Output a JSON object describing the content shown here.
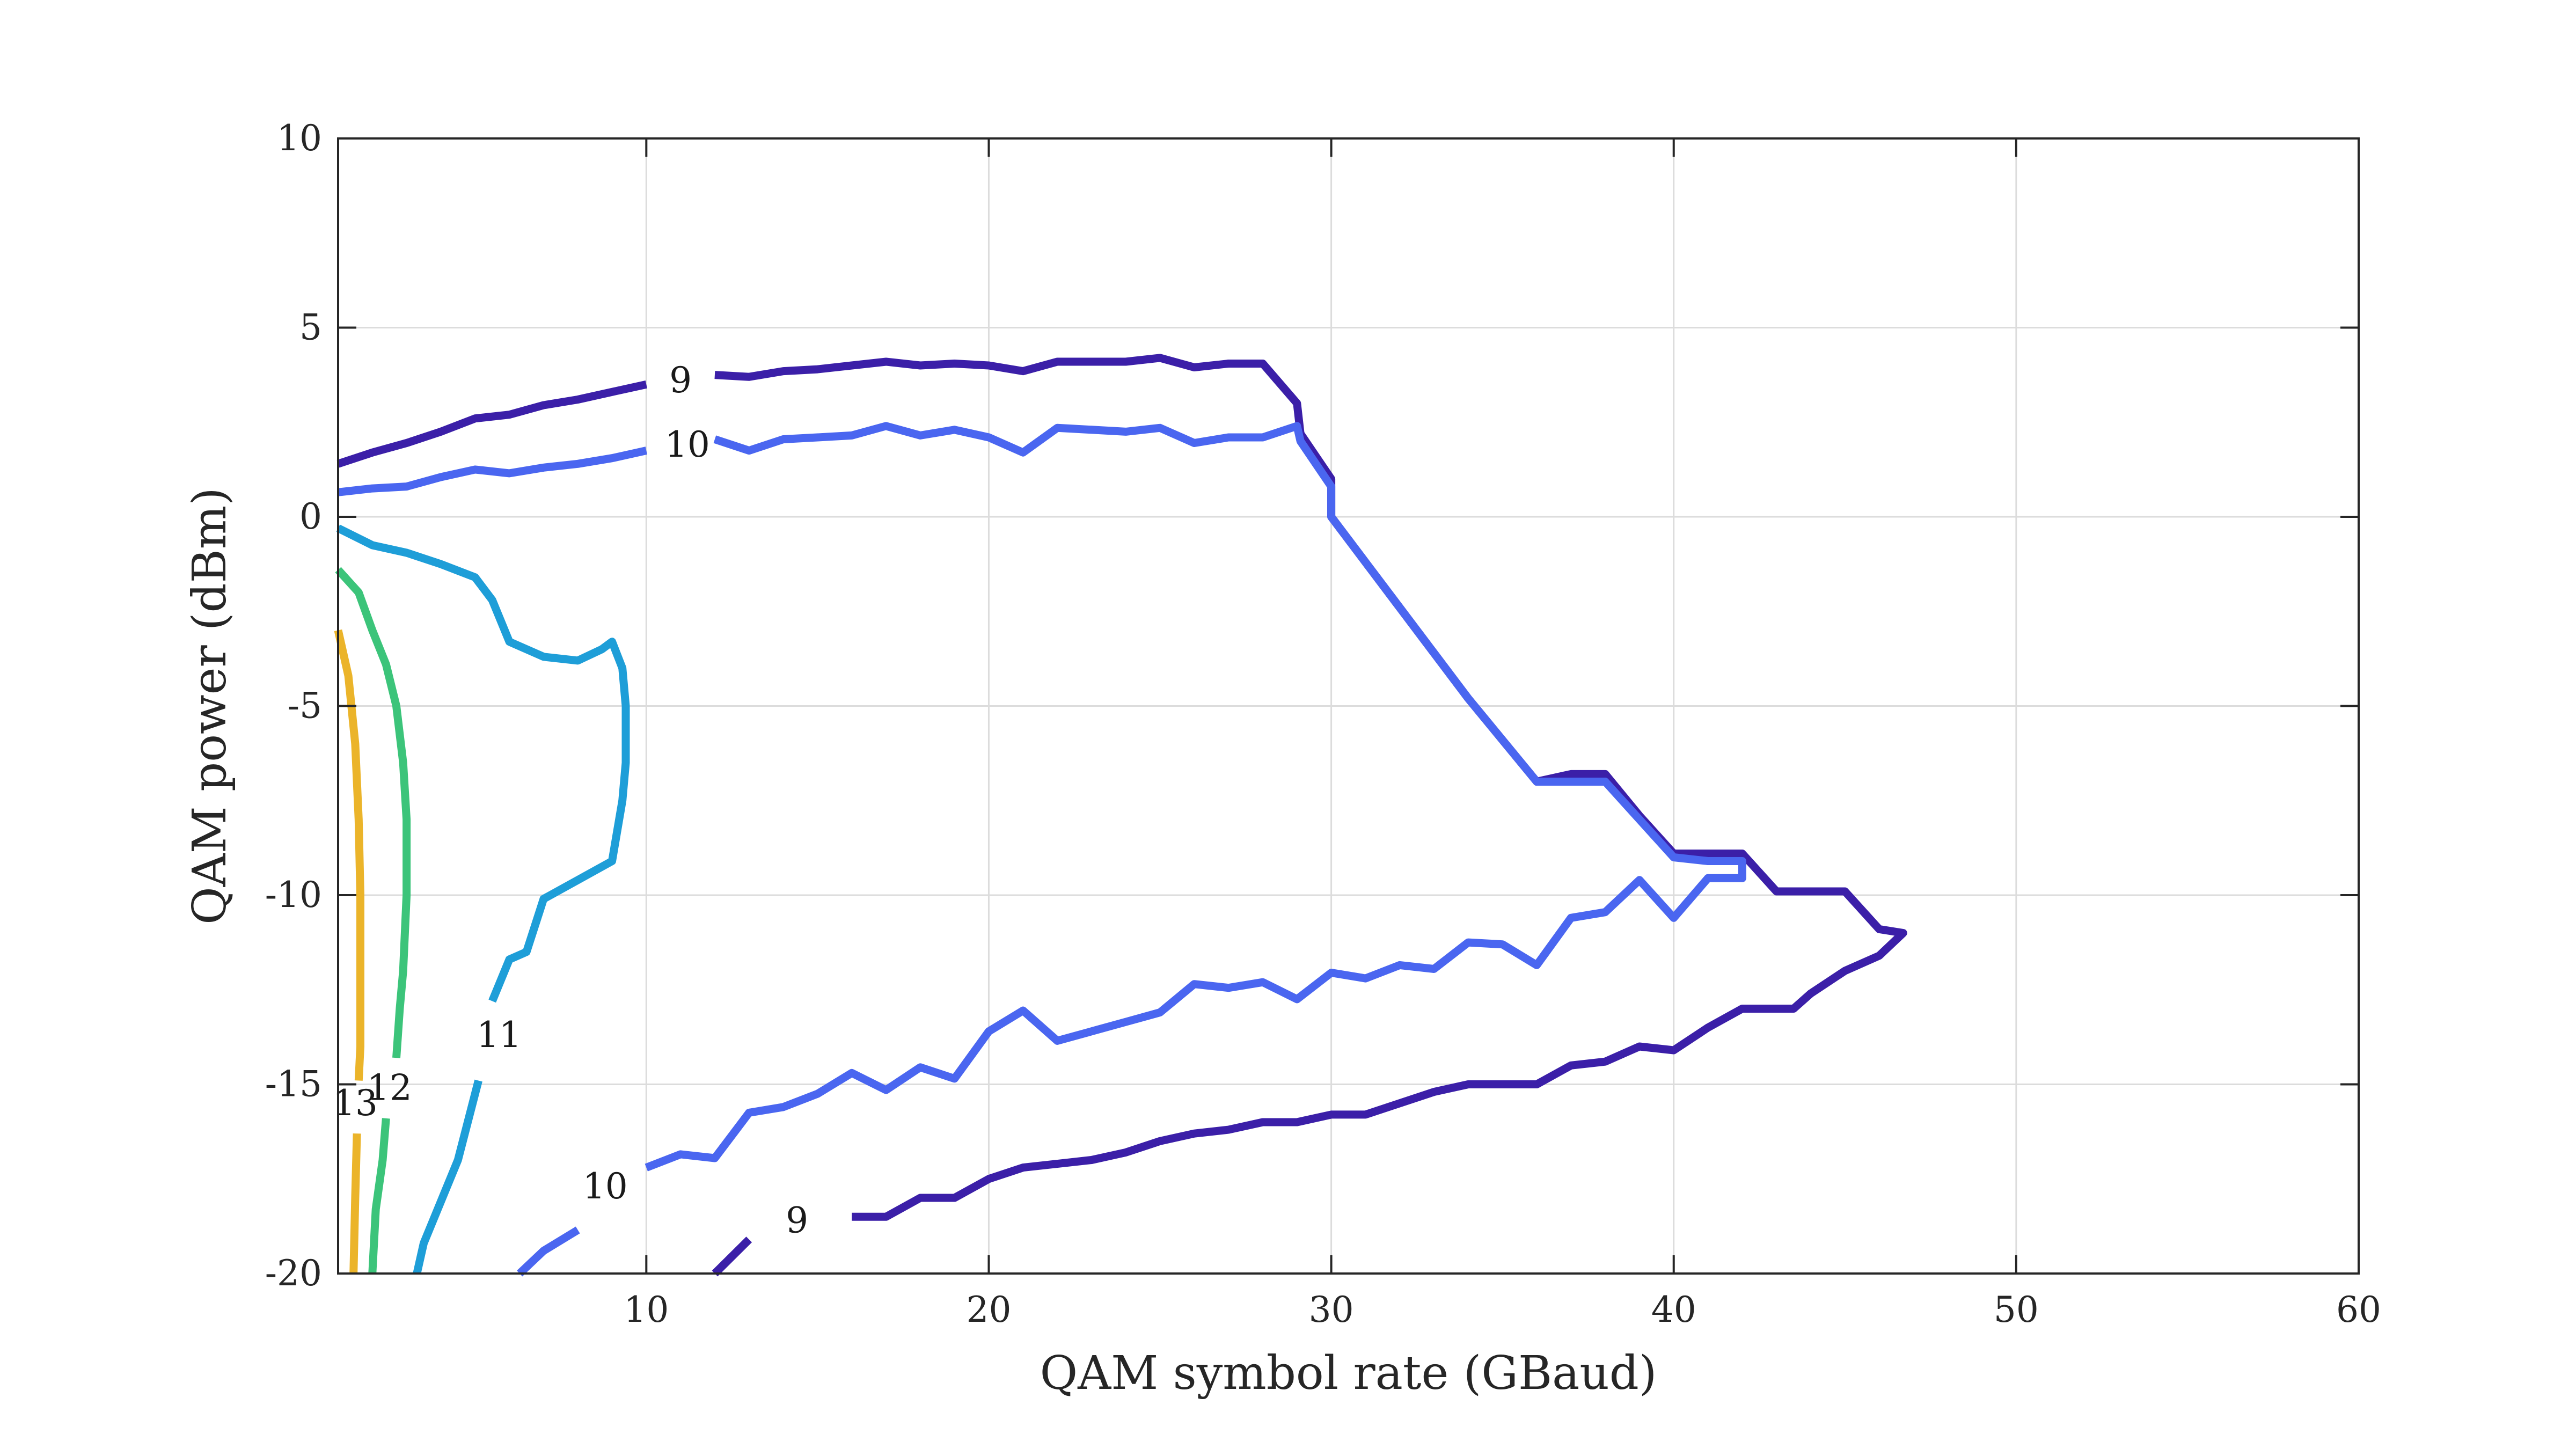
{
  "chart_data": {
    "type": "contour",
    "title": "",
    "xlabel": "QAM symbol rate (GBaud)",
    "ylabel": "QAM power (dBm)",
    "xlim": [
      1,
      60
    ],
    "ylim": [
      -20,
      10
    ],
    "xticks": [
      10,
      20,
      30,
      40,
      50,
      60
    ],
    "yticks": [
      -20,
      -15,
      -10,
      -5,
      0,
      5,
      10
    ],
    "xtick_labels": [
      "10",
      "20",
      "30",
      "40",
      "50",
      "60"
    ],
    "ytick_labels": [
      "-20",
      "-15",
      "-10",
      "-5",
      "0",
      "5",
      "10"
    ],
    "grid": true,
    "legend": "none",
    "series": [
      {
        "level_label": "9",
        "color": "#3b1fa8",
        "label_positions": [
          [
            11,
            3.6
          ],
          [
            14.4,
            -18.6
          ]
        ],
        "paths": [
          [
            [
              1,
              1.4
            ],
            [
              2,
              1.7
            ],
            [
              3,
              1.95
            ],
            [
              4,
              2.25
            ],
            [
              5,
              2.6
            ],
            [
              6,
              2.7
            ],
            [
              7,
              2.95
            ],
            [
              8,
              3.1
            ],
            [
              9,
              3.3
            ],
            [
              10,
              3.5
            ]
          ],
          [
            [
              12,
              3.75
            ],
            [
              13,
              3.7
            ],
            [
              14,
              3.85
            ],
            [
              15,
              3.9
            ],
            [
              16,
              4.0
            ],
            [
              17,
              4.1
            ],
            [
              18,
              4.0
            ],
            [
              19,
              4.05
            ],
            [
              20,
              4.0
            ],
            [
              21,
              3.85
            ],
            [
              22,
              4.1
            ],
            [
              23,
              4.1
            ],
            [
              24,
              4.1
            ],
            [
              25,
              4.2
            ],
            [
              26,
              3.95
            ],
            [
              27,
              4.05
            ],
            [
              28,
              4.05
            ],
            [
              29,
              3.0
            ],
            [
              29.1,
              2.2
            ],
            [
              30,
              1.0
            ],
            [
              30,
              0.0
            ],
            [
              31,
              -1.2
            ],
            [
              32,
              -2.4
            ],
            [
              33,
              -3.6
            ],
            [
              34,
              -4.8
            ],
            [
              35,
              -5.9
            ],
            [
              36,
              -7.0
            ],
            [
              37,
              -6.8
            ],
            [
              38,
              -6.8
            ],
            [
              39,
              -7.9
            ],
            [
              40,
              -8.9
            ],
            [
              41,
              -8.9
            ],
            [
              42,
              -8.9
            ],
            [
              43,
              -9.9
            ],
            [
              44,
              -9.9
            ],
            [
              45,
              -9.9
            ],
            [
              46,
              -10.9
            ],
            [
              46.7,
              -11.0
            ],
            [
              46,
              -11.6
            ],
            [
              45,
              -12.0
            ],
            [
              44,
              -12.6
            ],
            [
              43.5,
              -13.0
            ],
            [
              42,
              -13.0
            ],
            [
              41,
              -13.5
            ],
            [
              40,
              -14.1
            ],
            [
              39,
              -14.0
            ],
            [
              38,
              -14.4
            ],
            [
              37,
              -14.5
            ],
            [
              36,
              -15.0
            ],
            [
              35,
              -15.0
            ],
            [
              34,
              -15.0
            ],
            [
              33,
              -15.2
            ],
            [
              32,
              -15.5
            ],
            [
              31,
              -15.8
            ],
            [
              30,
              -15.8
            ],
            [
              29,
              -16.0
            ],
            [
              28,
              -16.0
            ],
            [
              27,
              -16.2
            ],
            [
              26,
              -16.3
            ],
            [
              25,
              -16.5
            ],
            [
              24,
              -16.8
            ],
            [
              23,
              -17.0
            ],
            [
              22,
              -17.1
            ],
            [
              21,
              -17.2
            ],
            [
              20,
              -17.5
            ],
            [
              19,
              -18.0
            ],
            [
              18,
              -18.0
            ],
            [
              17,
              -18.5
            ],
            [
              16,
              -18.5
            ]
          ],
          [
            [
              13,
              -19.1
            ],
            [
              12,
              -20.0
            ]
          ]
        ]
      },
      {
        "level_label": "10",
        "color": "#4a66f0",
        "label_positions": [
          [
            11.2,
            1.9
          ],
          [
            8.8,
            -17.7
          ]
        ],
        "paths": [
          [
            [
              1,
              0.65
            ],
            [
              2,
              0.75
            ],
            [
              3,
              0.8
            ],
            [
              4,
              1.05
            ],
            [
              5,
              1.25
            ],
            [
              6,
              1.15
            ],
            [
              7,
              1.3
            ],
            [
              8,
              1.4
            ],
            [
              9,
              1.55
            ],
            [
              10,
              1.75
            ]
          ],
          [
            [
              12,
              2.05
            ],
            [
              13,
              1.75
            ],
            [
              14,
              2.05
            ],
            [
              15,
              2.1
            ],
            [
              16,
              2.15
            ],
            [
              17,
              2.4
            ],
            [
              18,
              2.15
            ],
            [
              19,
              2.3
            ],
            [
              20,
              2.1
            ],
            [
              21,
              1.7
            ],
            [
              22,
              2.35
            ],
            [
              23,
              2.3
            ],
            [
              24,
              2.25
            ],
            [
              25,
              2.35
            ],
            [
              26,
              1.95
            ],
            [
              27,
              2.1
            ],
            [
              28,
              2.1
            ],
            [
              29,
              2.4
            ],
            [
              29.1,
              2.0
            ],
            [
              30,
              0.8
            ],
            [
              30,
              0.0
            ],
            [
              31,
              -1.2
            ],
            [
              32,
              -2.4
            ],
            [
              33,
              -3.6
            ],
            [
              34,
              -4.8
            ],
            [
              35,
              -5.9
            ],
            [
              36,
              -7.0
            ],
            [
              37,
              -7.0
            ],
            [
              38,
              -7.0
            ],
            [
              39,
              -8.0
            ],
            [
              40,
              -9.0
            ],
            [
              41,
              -9.1
            ],
            [
              42,
              -9.1
            ],
            [
              42,
              -9.55
            ],
            [
              41,
              -9.55
            ],
            [
              40,
              -10.6
            ],
            [
              39,
              -9.6
            ],
            [
              38,
              -10.45
            ],
            [
              37,
              -10.6
            ],
            [
              36,
              -11.85
            ],
            [
              35,
              -11.3
            ],
            [
              34,
              -11.25
            ],
            [
              33,
              -11.95
            ],
            [
              32,
              -11.85
            ],
            [
              31,
              -12.2
            ],
            [
              30,
              -12.05
            ],
            [
              29,
              -12.75
            ],
            [
              28,
              -12.3
            ],
            [
              27,
              -12.45
            ],
            [
              26,
              -12.35
            ],
            [
              25,
              -13.1
            ],
            [
              24,
              -13.35
            ],
            [
              23,
              -13.6
            ],
            [
              22,
              -13.85
            ],
            [
              21,
              -13.05
            ],
            [
              20,
              -13.6
            ],
            [
              19,
              -14.85
            ],
            [
              18,
              -14.55
            ],
            [
              17,
              -15.15
            ],
            [
              16,
              -14.7
            ],
            [
              15,
              -15.25
            ],
            [
              14,
              -15.6
            ],
            [
              13,
              -15.75
            ],
            [
              12,
              -16.95
            ],
            [
              11,
              -16.85
            ],
            [
              10,
              -17.2
            ]
          ],
          [
            [
              8,
              -18.85
            ],
            [
              7,
              -19.4
            ],
            [
              6.3,
              -20.0
            ]
          ]
        ]
      },
      {
        "level_label": "11",
        "color": "#1e9ed8",
        "label_positions": [
          [
            5.7,
            -13.7
          ]
        ],
        "paths": [
          [
            [
              1,
              -0.3
            ],
            [
              2,
              -0.75
            ],
            [
              3,
              -0.95
            ],
            [
              4,
              -1.25
            ],
            [
              5,
              -1.6
            ],
            [
              5.5,
              -2.2
            ],
            [
              6,
              -3.3
            ],
            [
              7,
              -3.7
            ],
            [
              8,
              -3.8
            ],
            [
              8.7,
              -3.5
            ],
            [
              9,
              -3.3
            ],
            [
              9.3,
              -4.0
            ],
            [
              9.4,
              -5.0
            ],
            [
              9.4,
              -6.5
            ],
            [
              9.3,
              -7.5
            ],
            [
              9,
              -9.1
            ],
            [
              8,
              -9.6
            ],
            [
              7,
              -10.1
            ],
            [
              6.5,
              -11.5
            ],
            [
              6,
              -11.7
            ],
            [
              5.5,
              -12.8
            ]
          ],
          [
            [
              5.1,
              -14.9
            ],
            [
              4.5,
              -17.0
            ],
            [
              3.5,
              -19.2
            ],
            [
              3.3,
              -20.0
            ]
          ]
        ]
      },
      {
        "level_label": "12",
        "color": "#3cc47a",
        "label_positions": [
          [
            2.5,
            -15.1
          ]
        ],
        "paths": [
          [
            [
              1,
              -1.4
            ],
            [
              1.6,
              -2.0
            ],
            [
              2,
              -3.0
            ],
            [
              2.4,
              -3.9
            ],
            [
              2.7,
              -5.0
            ],
            [
              2.9,
              -6.5
            ],
            [
              3.0,
              -8.0
            ],
            [
              3.0,
              -10.0
            ],
            [
              2.9,
              -12.0
            ],
            [
              2.8,
              -13.0
            ],
            [
              2.7,
              -14.3
            ]
          ],
          [
            [
              2.4,
              -15.9
            ],
            [
              2.3,
              -17.0
            ],
            [
              2.1,
              -18.3
            ],
            [
              2.0,
              -20.0
            ]
          ]
        ]
      },
      {
        "level_label": "13",
        "color": "#ebb42a",
        "label_positions": [
          [
            1.5,
            -15.5
          ]
        ],
        "paths": [
          [
            [
              1,
              -3.0
            ],
            [
              1.3,
              -4.2
            ],
            [
              1.5,
              -6.0
            ],
            [
              1.6,
              -8.0
            ],
            [
              1.65,
              -10.0
            ],
            [
              1.65,
              -12.0
            ],
            [
              1.65,
              -14.0
            ],
            [
              1.6,
              -14.9
            ]
          ],
          [
            [
              1.55,
              -16.3
            ],
            [
              1.5,
              -18.0
            ],
            [
              1.45,
              -20.0
            ]
          ]
        ]
      }
    ]
  }
}
